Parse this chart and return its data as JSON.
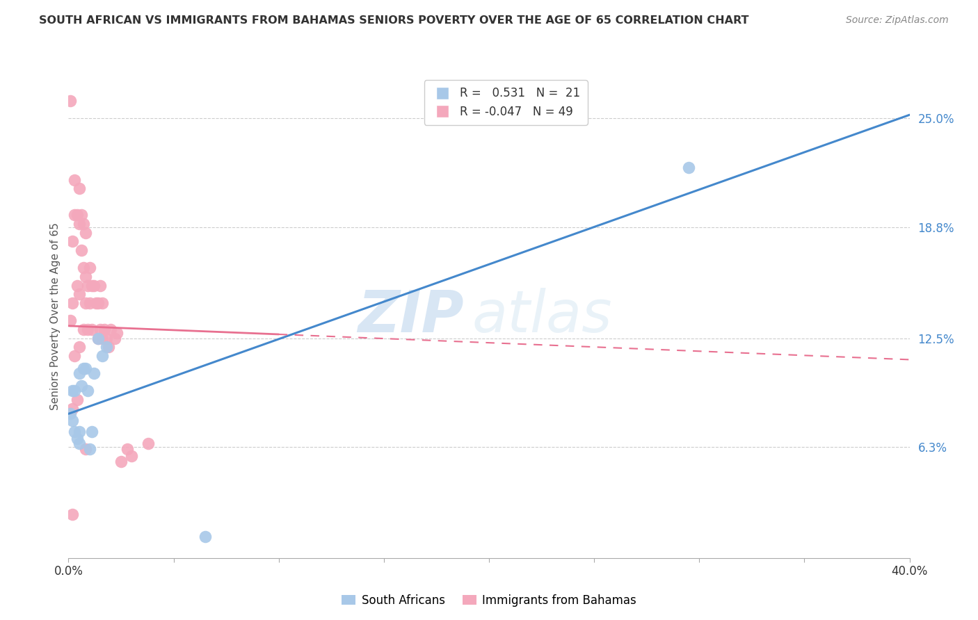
{
  "title": "SOUTH AFRICAN VS IMMIGRANTS FROM BAHAMAS SENIORS POVERTY OVER THE AGE OF 65 CORRELATION CHART",
  "source": "Source: ZipAtlas.com",
  "ylabel": "Seniors Poverty Over the Age of 65",
  "ytick_labels": [
    "6.3%",
    "12.5%",
    "18.8%",
    "25.0%"
  ],
  "ytick_values": [
    0.063,
    0.125,
    0.188,
    0.25
  ],
  "xmin": 0.0,
  "xmax": 0.4,
  "ymin": 0.0,
  "ymax": 0.275,
  "watermark_zip": "ZIP",
  "watermark_atlas": "atlas",
  "legend_blue_r": "0.531",
  "legend_blue_n": "21",
  "legend_pink_r": "-0.047",
  "legend_pink_n": "49",
  "blue_color": "#A8C8E8",
  "pink_color": "#F4A8BC",
  "blue_line_color": "#4488CC",
  "pink_line_color": "#E87090",
  "blue_line_intercept": 0.082,
  "blue_line_slope": 0.425,
  "pink_line_intercept": 0.132,
  "pink_line_slope": -0.048,
  "south_african_x": [
    0.001,
    0.002,
    0.002,
    0.003,
    0.003,
    0.004,
    0.005,
    0.005,
    0.005,
    0.006,
    0.007,
    0.008,
    0.009,
    0.01,
    0.011,
    0.012,
    0.014,
    0.016,
    0.018,
    0.295,
    0.065
  ],
  "south_african_y": [
    0.082,
    0.095,
    0.078,
    0.095,
    0.072,
    0.068,
    0.065,
    0.072,
    0.105,
    0.098,
    0.108,
    0.108,
    0.095,
    0.062,
    0.072,
    0.105,
    0.125,
    0.115,
    0.12,
    0.222,
    0.012
  ],
  "bahamas_x": [
    0.001,
    0.001,
    0.002,
    0.002,
    0.002,
    0.003,
    0.003,
    0.003,
    0.004,
    0.004,
    0.004,
    0.005,
    0.005,
    0.005,
    0.005,
    0.006,
    0.006,
    0.007,
    0.007,
    0.007,
    0.008,
    0.008,
    0.008,
    0.009,
    0.009,
    0.01,
    0.01,
    0.011,
    0.011,
    0.012,
    0.013,
    0.014,
    0.014,
    0.015,
    0.015,
    0.016,
    0.016,
    0.017,
    0.018,
    0.019,
    0.02,
    0.022,
    0.023,
    0.025,
    0.028,
    0.03,
    0.038,
    0.002,
    0.008
  ],
  "bahamas_y": [
    0.26,
    0.135,
    0.18,
    0.145,
    0.085,
    0.215,
    0.195,
    0.115,
    0.195,
    0.155,
    0.09,
    0.21,
    0.19,
    0.15,
    0.12,
    0.195,
    0.175,
    0.19,
    0.165,
    0.13,
    0.185,
    0.16,
    0.145,
    0.155,
    0.13,
    0.165,
    0.145,
    0.155,
    0.13,
    0.155,
    0.145,
    0.145,
    0.125,
    0.155,
    0.13,
    0.145,
    0.125,
    0.13,
    0.125,
    0.12,
    0.13,
    0.125,
    0.128,
    0.055,
    0.062,
    0.058,
    0.065,
    0.025,
    0.062
  ]
}
